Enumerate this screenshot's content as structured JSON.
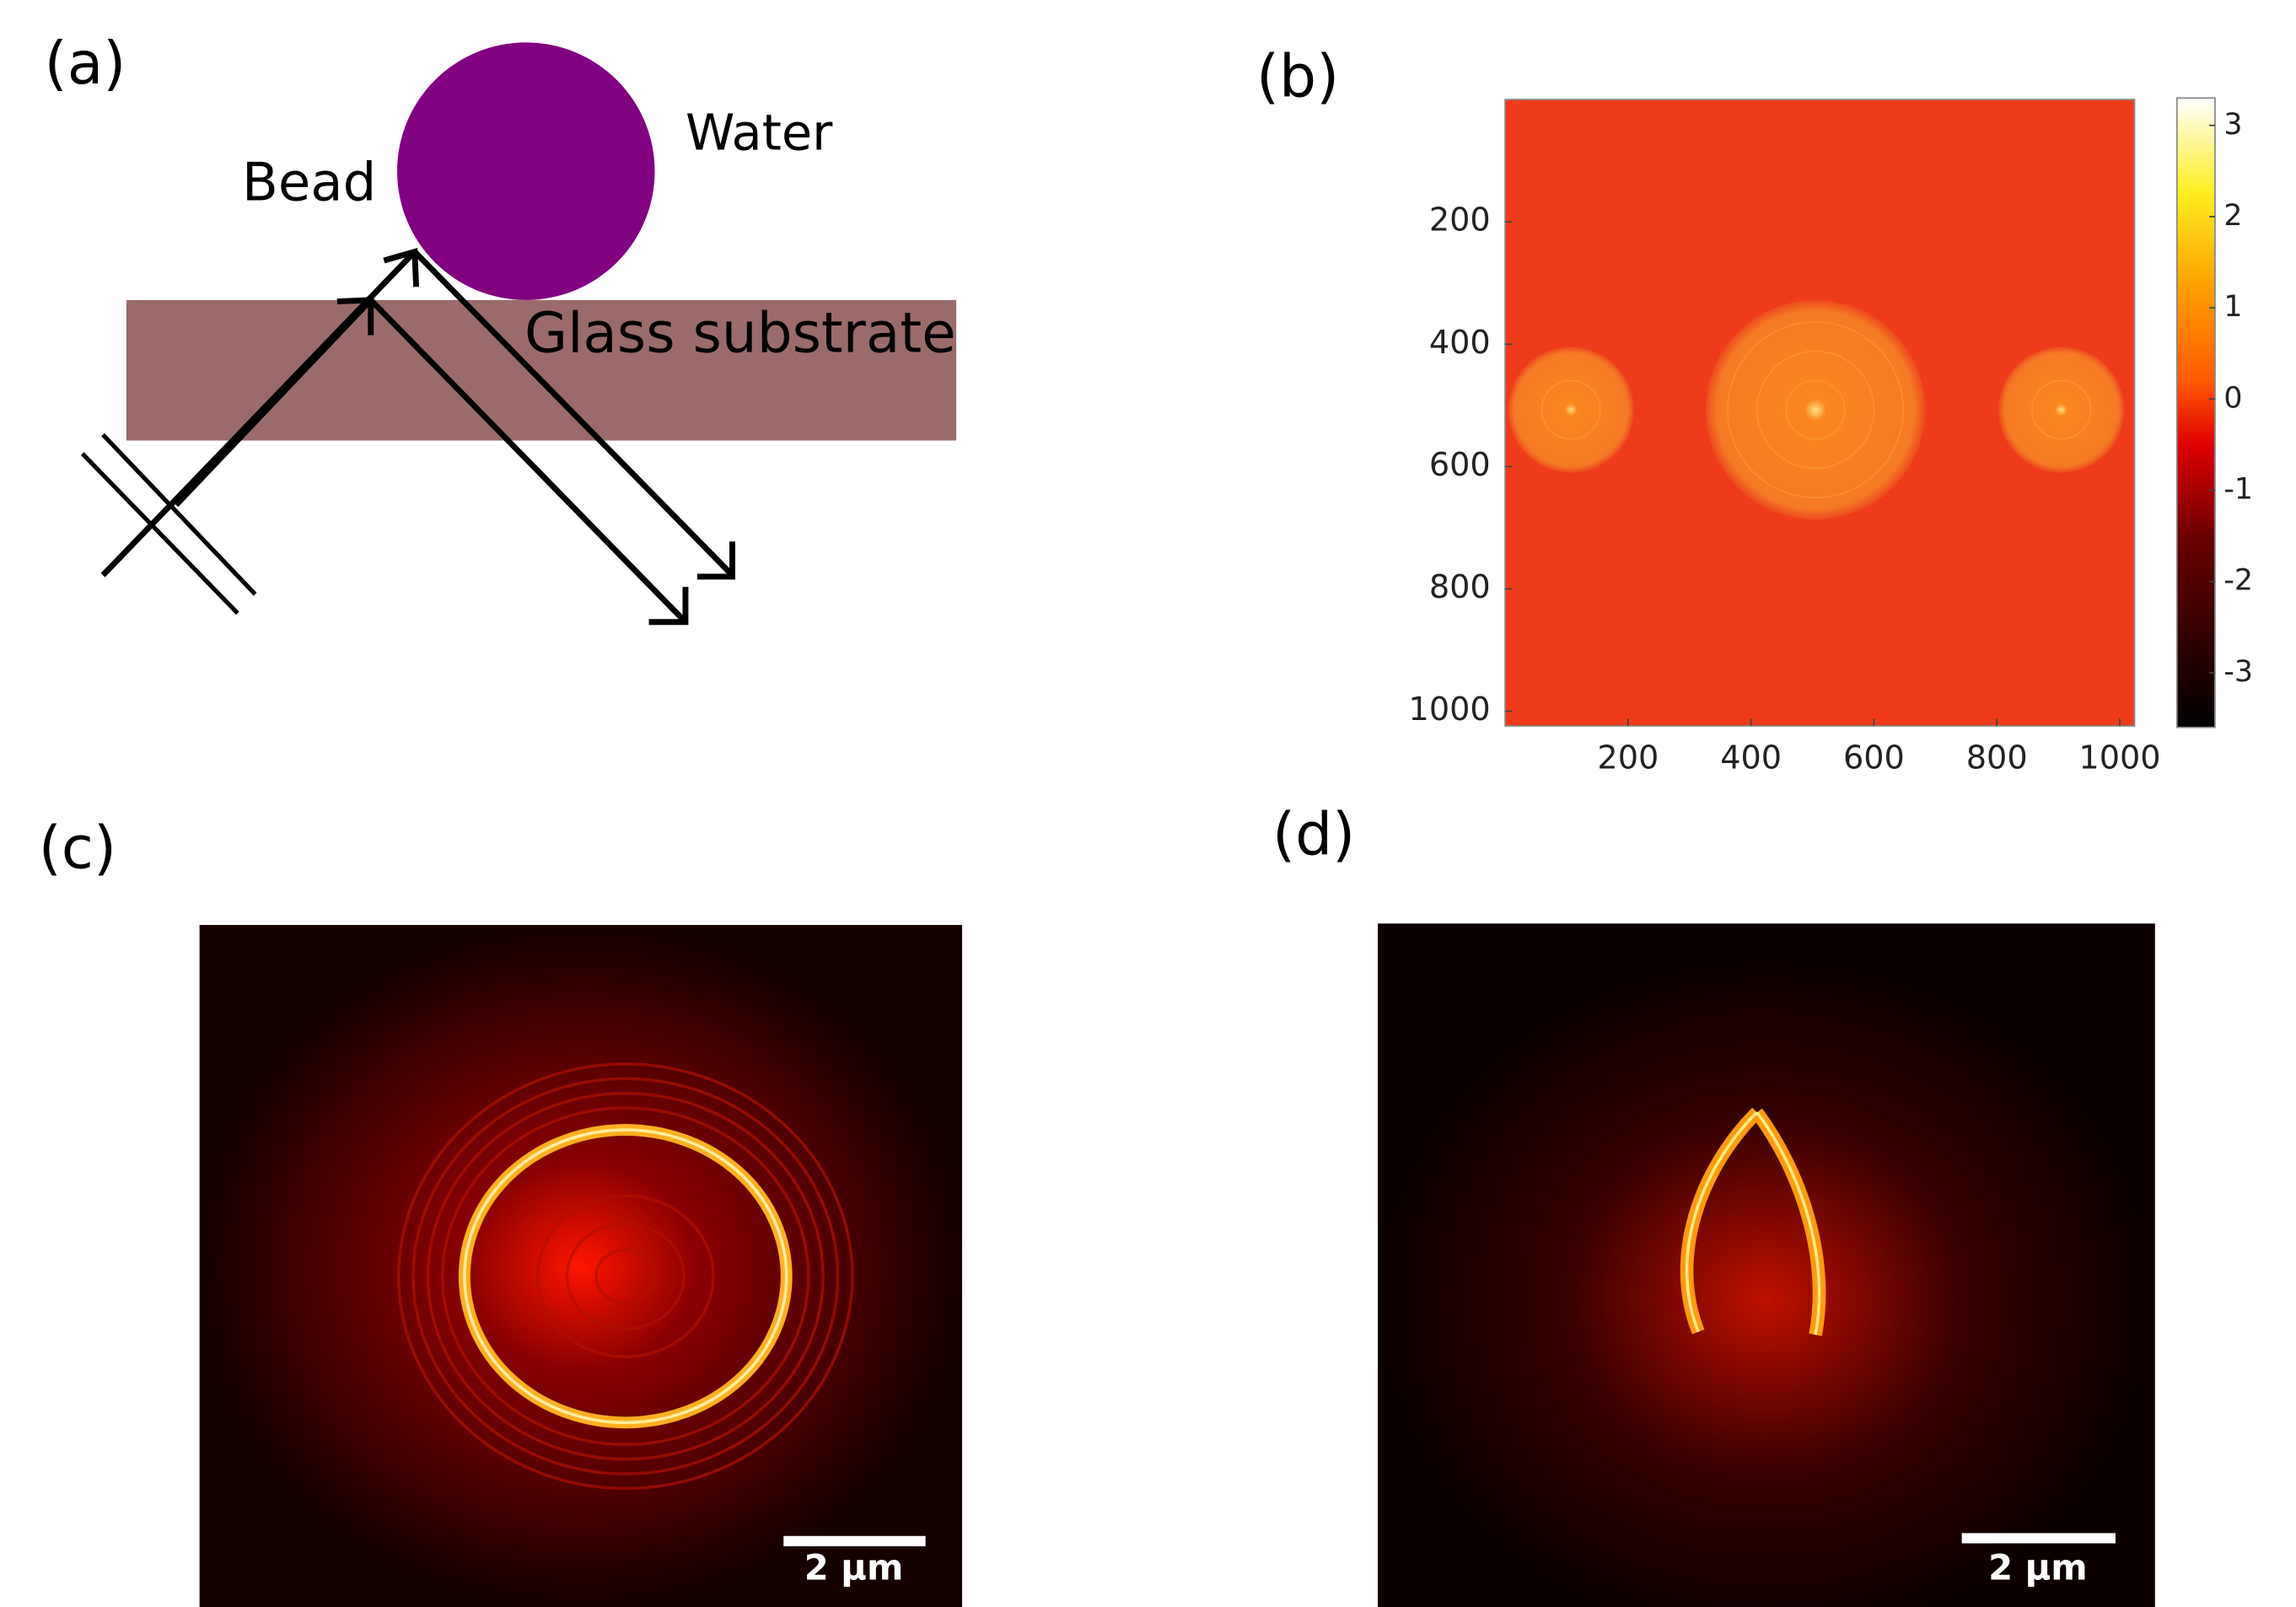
{
  "panels": [
    {
      "label": "(a)",
      "bead": "Bead",
      "water": "Water",
      "substrate": "Glass substrate"
    },
    {
      "label": "(b)",
      "xlim": [
        0,
        1024
      ],
      "ylim": [
        0,
        1024
      ],
      "xticks": [
        200,
        400,
        600,
        800,
        1000
      ],
      "yticks": [
        200,
        400,
        600,
        800,
        1000
      ],
      "clim": [
        -3.6,
        3.3
      ],
      "colorbar_ticks": [
        3,
        2,
        1,
        0,
        -1,
        -2,
        -3
      ]
    },
    {
      "label": "(c)",
      "scale_bar": "2 µm"
    },
    {
      "label": "(d)",
      "scale_bar": "2 µm"
    }
  ]
}
